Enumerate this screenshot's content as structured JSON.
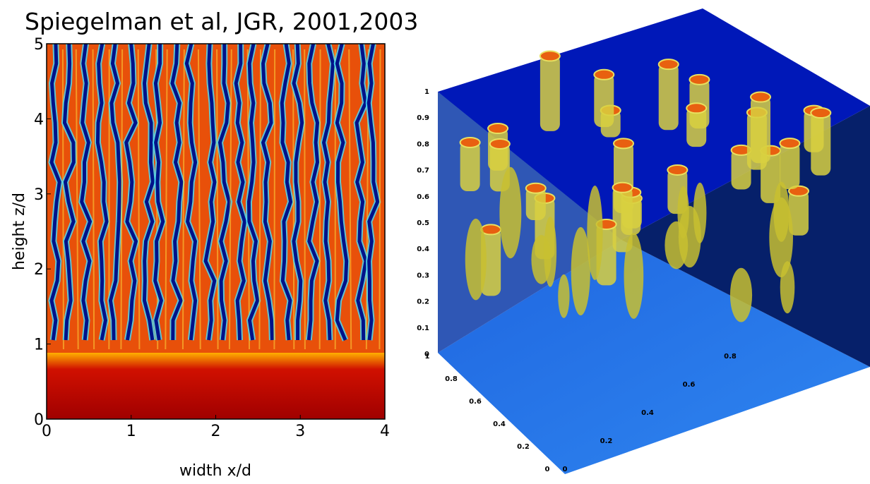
{
  "header": {
    "title": "Spiegelman et al, JGR, 2001,2003"
  },
  "left_panel": {
    "x_label": "width x/d",
    "y_label": "height z/d",
    "x_ticks": [
      0,
      1,
      2,
      3,
      4
    ],
    "y_ticks": [
      0,
      1,
      2,
      3,
      4,
      5
    ]
  },
  "right_panel": {
    "z_ticks": [
      0,
      0.1,
      0.2,
      0.3,
      0.4,
      0.5,
      0.6,
      0.7,
      0.8,
      0.9,
      1
    ],
    "y_ticks": [
      1,
      0.8,
      0.6,
      0.4,
      0.2,
      0
    ],
    "x_ticks": [
      0,
      0.2,
      0.4,
      0.6,
      0.8
    ]
  }
}
